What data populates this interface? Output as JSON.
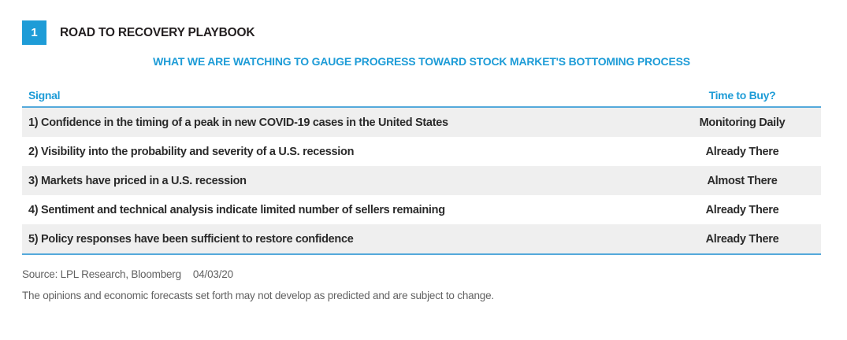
{
  "colors": {
    "accent_blue": "#1E9CD7",
    "rule_blue": "#54A9DB",
    "row_alt_gray": "#EFEFEF",
    "body_text": "#2B2B2B",
    "footer_gray": "#626262"
  },
  "figure": {
    "number": "1",
    "title": "ROAD TO RECOVERY PLAYBOOK",
    "subtitle": "WHAT WE ARE WATCHING TO GAUGE PROGRESS TOWARD STOCK MARKET'S BOTTOMING PROCESS"
  },
  "table": {
    "columns": [
      "Signal",
      "Time to Buy?"
    ],
    "rows": [
      {
        "signal": "1) Confidence in the timing of a peak in new COVID-19 cases in the United States",
        "time_to_buy": "Monitoring Daily"
      },
      {
        "signal": "2) Visibility into the probability and severity of a U.S. recession",
        "time_to_buy": "Already There"
      },
      {
        "signal": "3) Markets have priced in a U.S. recession",
        "time_to_buy": "Almost There"
      },
      {
        "signal": "4) Sentiment and technical analysis indicate limited number of sellers remaining",
        "time_to_buy": "Already There"
      },
      {
        "signal": "5) Policy responses have been sufficient to restore confidence",
        "time_to_buy": "Already There"
      }
    ]
  },
  "footer": {
    "source": "Source: LPL Research, Bloomberg",
    "date": "04/03/20",
    "disclaimer": "The opinions and economic forecasts set forth may not develop as predicted and are subject to change."
  }
}
